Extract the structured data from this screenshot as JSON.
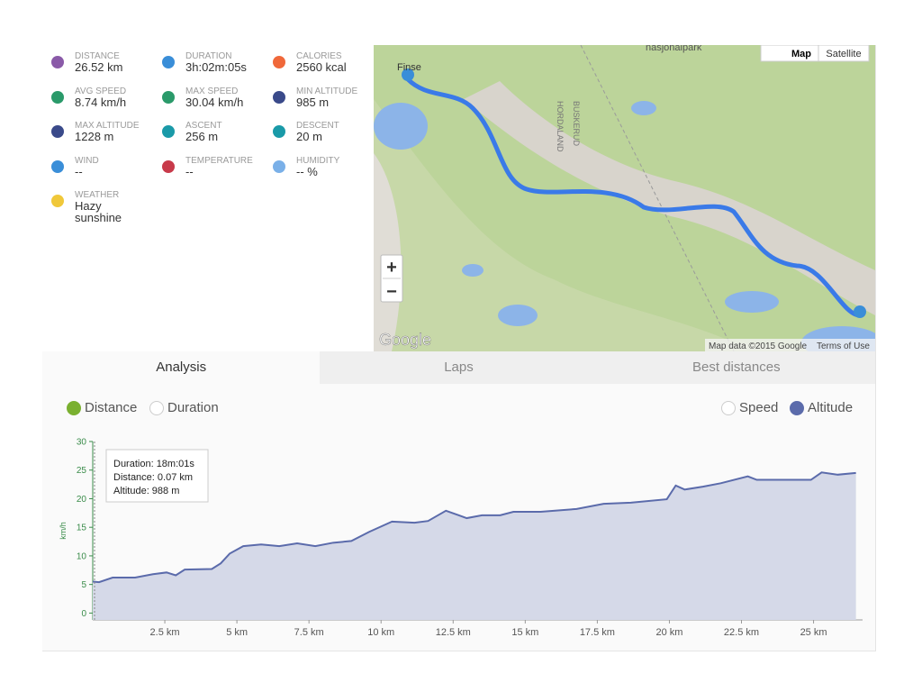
{
  "stats": [
    {
      "label": "DISTANCE",
      "value": "26.52 km",
      "color": "#8a5aa8"
    },
    {
      "label": "DURATION",
      "value": "3h:02m:05s",
      "color": "#3a8ed8"
    },
    {
      "label": "CALORIES",
      "value": "2560 kcal",
      "color": "#f0683a"
    },
    {
      "label": "AVG SPEED",
      "value": "8.74 km/h",
      "color": "#2a9a6a"
    },
    {
      "label": "MAX SPEED",
      "value": "30.04 km/h",
      "color": "#2a9a6a"
    },
    {
      "label": "MIN ALTITUDE",
      "value": "985 m",
      "color": "#3a4a8a"
    },
    {
      "label": "MAX ALTITUDE",
      "value": "1228 m",
      "color": "#3a4a8a"
    },
    {
      "label": "ASCENT",
      "value": "256 m",
      "color": "#1a9aa8"
    },
    {
      "label": "DESCENT",
      "value": "20 m",
      "color": "#1a9aa8"
    },
    {
      "label": "WIND",
      "value": "--",
      "color": "#3a8ed8"
    },
    {
      "label": "TEMPERATURE",
      "value": "--",
      "color": "#c83a4a"
    },
    {
      "label": "HUMIDITY",
      "value": "-- %",
      "color": "#7ab0e8"
    },
    {
      "label": "WEATHER",
      "value": "Hazy sunshine",
      "color": "#f0c83a"
    }
  ],
  "map": {
    "places": [
      "Finse",
      "nasjonalpark",
      "HORDALAND",
      "BUSKERUD"
    ],
    "buttons": [
      "Map",
      "Satellite"
    ],
    "zoom": [
      "+",
      "−"
    ],
    "logo": "Google",
    "attribution": "Map data ©2015 Google",
    "terms": "Terms of Use"
  },
  "tabs": [
    "Analysis",
    "Laps",
    "Best distances"
  ],
  "x_options": [
    "Distance",
    "Duration"
  ],
  "y_options": [
    "Speed",
    "Altitude"
  ],
  "chart_data": {
    "type": "area",
    "y_label": "km/h",
    "x": [
      0,
      0.22,
      0.69,
      1.47,
      2.09,
      2.56,
      2.88,
      3.19,
      4.13,
      4.44,
      4.75,
      5.22,
      5.84,
      6.47,
      7.09,
      7.72,
      8.34,
      8.97,
      9.59,
      10.38,
      11.16,
      11.63,
      12.25,
      12.97,
      13.5,
      14.13,
      14.59,
      15.53,
      16.78,
      17.72,
      18.66,
      19.91,
      20.22,
      20.53,
      21.16,
      21.78,
      22.72,
      23.03,
      23.97,
      24.91,
      25.28,
      25.84,
      26.47
    ],
    "series": [
      {
        "name": "Altitude",
        "color": "#5b6bab",
        "fill": "#d5d9e8",
        "values": [
          5.5,
          5.4,
          6.2,
          6.2,
          6.8,
          7.1,
          6.6,
          7.6,
          7.7,
          8.7,
          10.4,
          11.7,
          12,
          11.7,
          12.2,
          11.7,
          12.3,
          12.6,
          14.2,
          16,
          15.8,
          16.1,
          17.9,
          16.6,
          17.1,
          17.1,
          17.7,
          17.7,
          18.2,
          19.1,
          19.3,
          19.9,
          22.3,
          21.6,
          22.1,
          22.7,
          23.9,
          23.3,
          23.3,
          23.3,
          24.6,
          24.2,
          24.5
        ]
      }
    ],
    "xlim": [
      0,
      26.7
    ],
    "ylim": [
      -1.2,
      30
    ],
    "yticks": [
      0,
      5,
      10,
      15,
      20,
      25,
      30
    ],
    "xticks": [
      {
        "value": 2.5,
        "label": "2.5 km"
      },
      {
        "value": 5,
        "label": "5 km"
      },
      {
        "value": 7.5,
        "label": "7.5 km"
      },
      {
        "value": 10,
        "label": "10 km"
      },
      {
        "value": 12.5,
        "label": "12.5 km"
      },
      {
        "value": 15,
        "label": "15 km"
      },
      {
        "value": 17.5,
        "label": "17.5 km"
      },
      {
        "value": 20,
        "label": "20 km"
      },
      {
        "value": 22.5,
        "label": "22.5 km"
      },
      {
        "value": 25,
        "label": "25 km"
      }
    ],
    "tooltip": [
      "Duration: 18m:01s",
      "Distance: 0.07 km",
      "Altitude: 988 m"
    ]
  }
}
